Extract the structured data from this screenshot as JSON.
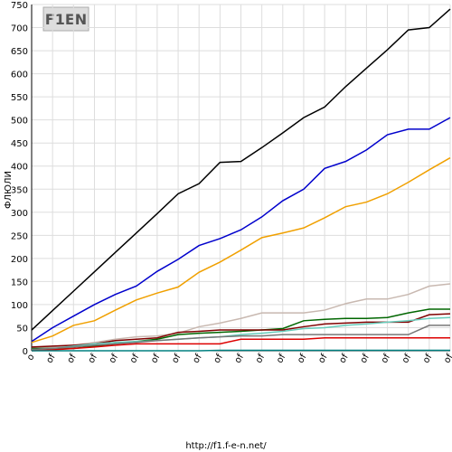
{
  "chart_data": {
    "type": "line",
    "logo": "F1EN",
    "y_label": "ФЛЮЛИ",
    "footer": "http://f1.f-e-n.net/",
    "categories": [
      "o",
      "of",
      "of",
      "of",
      "of",
      "of",
      "of",
      "of",
      "of",
      "of",
      "of",
      "of",
      "of",
      "of",
      "of",
      "of",
      "of",
      "of",
      "of",
      "of",
      "of"
    ],
    "ylim": [
      0,
      750
    ],
    "yticks": [
      0,
      50,
      100,
      150,
      200,
      250,
      300,
      350,
      400,
      450,
      500,
      550,
      600,
      650,
      700,
      750
    ],
    "grid": true,
    "series": [
      {
        "color": "#000000",
        "values": [
          45,
          87,
          129,
          171,
          213,
          255,
          297,
          340,
          362,
          408,
          410,
          440,
          472,
          505,
          528,
          572,
          612,
          652,
          695,
          700,
          740
        ]
      },
      {
        "color": "#0000cc",
        "values": [
          20,
          50,
          75,
          100,
          122,
          140,
          172,
          198,
          228,
          243,
          262,
          290,
          325,
          350,
          395,
          410,
          435,
          468,
          480,
          480,
          505
        ]
      },
      {
        "color": "#f0a000",
        "values": [
          18,
          32,
          55,
          65,
          88,
          110,
          125,
          138,
          170,
          192,
          218,
          245,
          255,
          266,
          288,
          312,
          322,
          340,
          365,
          392,
          418
        ]
      },
      {
        "color": "#c8b8b0",
        "values": [
          5,
          8,
          12,
          18,
          25,
          30,
          32,
          38,
          52,
          60,
          70,
          82,
          82,
          82,
          88,
          102,
          112,
          112,
          122,
          140,
          145
        ]
      },
      {
        "color": "#006600",
        "values": [
          5,
          5,
          5,
          10,
          15,
          20,
          25,
          35,
          38,
          40,
          42,
          45,
          48,
          65,
          68,
          70,
          70,
          72,
          82,
          90,
          90
        ]
      },
      {
        "color": "#800000",
        "values": [
          8,
          10,
          12,
          15,
          22,
          25,
          28,
          40,
          42,
          45,
          45,
          45,
          45,
          52,
          58,
          60,
          62,
          62,
          62,
          78,
          80
        ]
      },
      {
        "color": "#66ccbb",
        "values": [
          3,
          5,
          10,
          15,
          18,
          20,
          22,
          25,
          28,
          30,
          35,
          38,
          42,
          48,
          50,
          55,
          58,
          62,
          65,
          70,
          72
        ]
      },
      {
        "color": "#777777",
        "values": [
          3,
          5,
          8,
          12,
          15,
          18,
          22,
          25,
          28,
          30,
          32,
          32,
          35,
          35,
          35,
          35,
          35,
          35,
          35,
          55,
          55
        ]
      },
      {
        "color": "#dd0000",
        "values": [
          0,
          2,
          5,
          8,
          12,
          15,
          15,
          15,
          15,
          15,
          25,
          25,
          25,
          25,
          28,
          28,
          28,
          28,
          28,
          28,
          28
        ]
      },
      {
        "color": "#008080",
        "values": [
          0,
          0,
          0,
          0,
          0,
          0,
          0,
          0,
          0,
          1,
          1,
          1,
          1,
          1,
          1,
          1,
          1,
          1,
          1,
          1,
          1
        ]
      }
    ]
  }
}
